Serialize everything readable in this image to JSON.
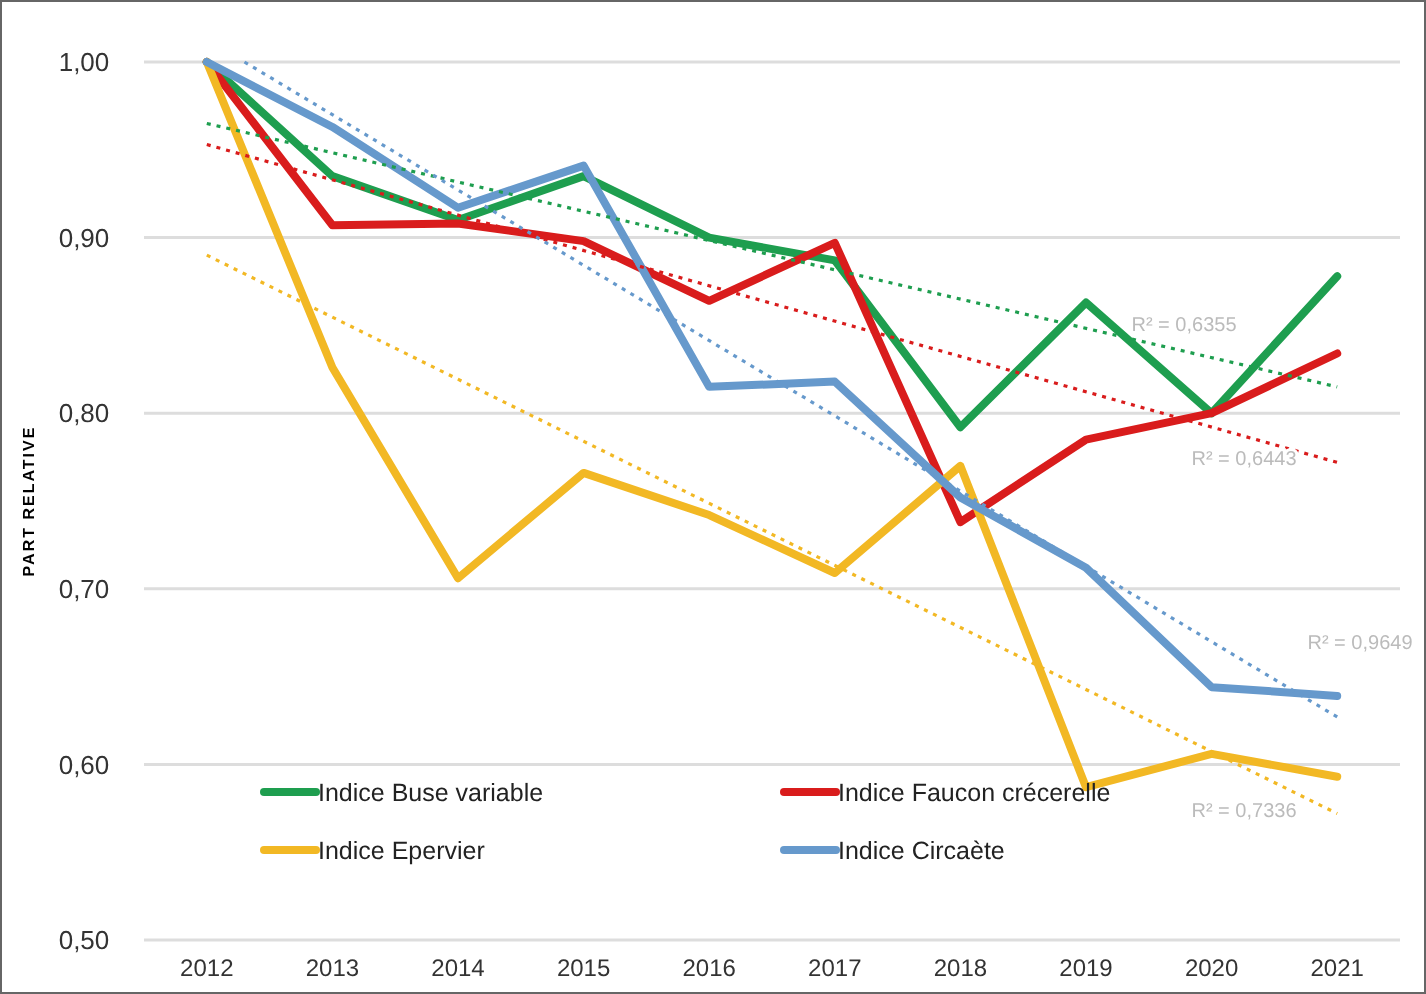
{
  "chart_data": {
    "type": "line",
    "ylabel": "PART RELATIVE",
    "x": [
      2012,
      2013,
      2014,
      2015,
      2016,
      2017,
      2018,
      2019,
      2020,
      2021
    ],
    "xlim": [
      2011.5,
      2021.5
    ],
    "xticks": [
      2012,
      2013,
      2014,
      2015,
      2016,
      2017,
      2018,
      2019,
      2020,
      2021
    ],
    "ylim": [
      0.5,
      1.0
    ],
    "yticks": [
      {
        "value": 0.5,
        "label": "0,50"
      },
      {
        "value": 0.6,
        "label": "0,60"
      },
      {
        "value": 0.7,
        "label": "0,70"
      },
      {
        "value": 0.8,
        "label": "0,80"
      },
      {
        "value": 0.9,
        "label": "0,90"
      },
      {
        "value": 1.0,
        "label": "1,00"
      }
    ],
    "grid": "y",
    "legend": "bottom left",
    "line_style": "solid",
    "marker": "none",
    "series": [
      {
        "name": "Indice Buse variable",
        "color": "#1e9e4f",
        "values": [
          1.0,
          0.935,
          0.91,
          0.935,
          0.9,
          0.887,
          0.792,
          0.863,
          0.8,
          0.878
        ]
      },
      {
        "name": "Indice Faucon crécerelle",
        "color": "#d91c1c",
        "values": [
          1.0,
          0.907,
          0.908,
          0.898,
          0.864,
          0.897,
          0.738,
          0.785,
          0.8,
          0.834
        ]
      },
      {
        "name": "Indice Epervier",
        "color": "#f2b824",
        "values": [
          1.0,
          0.826,
          0.706,
          0.766,
          0.742,
          0.709,
          0.77,
          0.587,
          0.606,
          0.593
        ]
      },
      {
        "name": "Indice Circaète",
        "color": "#6699cc",
        "values": [
          1.0,
          0.963,
          0.917,
          0.941,
          0.815,
          0.818,
          0.752,
          0.712,
          0.644,
          0.639
        ]
      },
      {
        "type": "line",
        "line_style": "dotted",
        "color": "#1e9e4f",
        "x": [
          2012,
          2021
        ],
        "values": [
          0.965,
          0.815
        ]
      },
      {
        "type": "line",
        "line_style": "dotted",
        "color": "#d91c1c",
        "x": [
          2012,
          2021
        ],
        "values": [
          0.953,
          0.772
        ]
      },
      {
        "type": "line",
        "line_style": "dotted",
        "color": "#f2b824",
        "x": [
          2012,
          2021
        ],
        "values": [
          0.89,
          0.572
        ]
      },
      {
        "type": "line",
        "line_style": "dotted",
        "color": "#6699cc",
        "x": [
          2012.3,
          2021
        ],
        "values": [
          1.0,
          0.627
        ]
      }
    ],
    "annotations": [
      "R² = 0,6355",
      "R² = 0,6443",
      "R² = 0,9649",
      "R² = 0,7336"
    ]
  }
}
